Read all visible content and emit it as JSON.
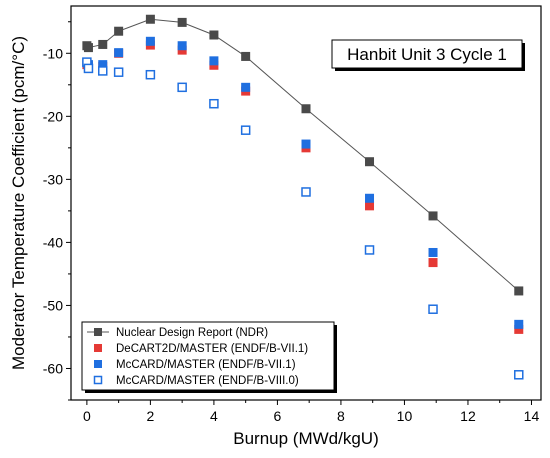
{
  "chart_data": {
    "type": "scatter",
    "title": "Hanbit Unit 3 Cycle 1",
    "xlabel": "Burnup (MWd/kgU)",
    "ylabel": "Moderator Temperature Coefficient (pcm/°C)",
    "xlim": [
      -0.5,
      14.3
    ],
    "ylim": [
      -65,
      -2.5
    ],
    "xticks": [
      0,
      2,
      4,
      6,
      8,
      10,
      12,
      14
    ],
    "yticks": [
      -60,
      -50,
      -40,
      -30,
      -20,
      -10
    ],
    "grid": false,
    "legend_position": "bottom-left",
    "x": [
      0,
      0.05,
      0.5,
      1,
      2,
      3,
      4,
      5,
      6.9,
      8.9,
      10.9,
      13.6
    ],
    "series": [
      {
        "name": "Nuclear Design Report (NDR)",
        "marker": "square-filled",
        "line": true,
        "color": "#4a4a4a",
        "values": [
          -8.8,
          -9.1,
          -8.6,
          -6.5,
          -4.6,
          -5.1,
          -7.1,
          -10.5,
          -18.8,
          -27.2,
          -35.8,
          -47.7
        ]
      },
      {
        "name": "DeCART2D/MASTER (ENDF/B-VII.1)",
        "marker": "square-filled",
        "line": false,
        "color": "#e53935",
        "values": [
          -11.8,
          -12.1,
          -12.1,
          -10.0,
          -8.7,
          -9.5,
          -11.9,
          -16.0,
          -25.0,
          -34.2,
          -43.2,
          -53.8
        ]
      },
      {
        "name": "McCARD/MASTER (ENDF/B-VII.1)",
        "marker": "square-filled",
        "line": false,
        "color": "#1f6fe0",
        "values": [
          -11.5,
          -11.8,
          -11.8,
          -9.9,
          -8.1,
          -8.8,
          -11.2,
          -15.4,
          -24.4,
          -33.0,
          -41.6,
          -53.0
        ]
      },
      {
        "name": "McCARD/MASTER (ENDF/B-VIII.0)",
        "marker": "square-open",
        "line": false,
        "color": "#1f6fe0",
        "values": [
          -11.4,
          -12.4,
          -12.8,
          -13.0,
          -13.4,
          -15.4,
          -18.0,
          -22.2,
          -32.0,
          -41.2,
          -50.6,
          -61.0
        ]
      }
    ]
  }
}
